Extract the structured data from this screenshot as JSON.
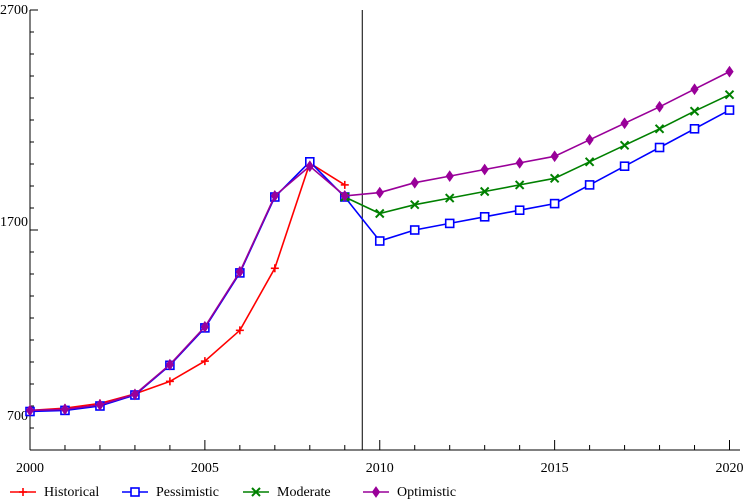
{
  "chart_data": {
    "type": "line",
    "title": "",
    "xlabel": "",
    "ylabel": "",
    "xlim": [
      2000,
      2020.3
    ],
    "ylim": [
      700,
      2700
    ],
    "x_ticks": [
      "2000",
      "2005",
      "2010",
      "2015",
      "2020"
    ],
    "y_ticks": [
      "700",
      "1700",
      "2700"
    ],
    "vertical_marker_x": 2009.5,
    "grid": false,
    "legend": {
      "placement": "bottom"
    },
    "series": [
      {
        "name": "Historical",
        "color": "#ff0000",
        "marker": "plus",
        "points": [
          [
            2000,
            880
          ],
          [
            2001,
            890
          ],
          [
            2002,
            912
          ],
          [
            2003,
            955
          ],
          [
            2004,
            1012
          ],
          [
            2005,
            1104
          ],
          [
            2006,
            1244
          ],
          [
            2007,
            1526
          ],
          [
            2008,
            2004
          ],
          [
            2009,
            1905
          ]
        ]
      },
      {
        "name": "Pessimistic",
        "color": "#0000ff",
        "marker": "square",
        "points": [
          [
            2000,
            875
          ],
          [
            2001,
            880
          ],
          [
            2002,
            900
          ],
          [
            2003,
            950
          ],
          [
            2004,
            1085
          ],
          [
            2005,
            1255
          ],
          [
            2006,
            1505
          ],
          [
            2007,
            1850
          ],
          [
            2008,
            2010
          ],
          [
            2009,
            1850
          ],
          [
            2010,
            1650
          ],
          [
            2011,
            1700
          ],
          [
            2012,
            1730
          ],
          [
            2013,
            1760
          ],
          [
            2014,
            1790
          ],
          [
            2015,
            1820
          ],
          [
            2016,
            1905
          ],
          [
            2017,
            1990
          ],
          [
            2018,
            2075
          ],
          [
            2019,
            2160
          ],
          [
            2020,
            2245
          ]
        ]
      },
      {
        "name": "Moderate",
        "color": "#008000",
        "marker": "x",
        "points": [
          [
            2009,
            1850
          ],
          [
            2010,
            1775
          ],
          [
            2011,
            1815
          ],
          [
            2012,
            1845
          ],
          [
            2013,
            1875
          ],
          [
            2014,
            1905
          ],
          [
            2015,
            1935
          ],
          [
            2016,
            2010
          ],
          [
            2017,
            2085
          ],
          [
            2018,
            2160
          ],
          [
            2019,
            2240
          ],
          [
            2020,
            2315
          ]
        ]
      },
      {
        "name": "Optimistic",
        "color": "#990099",
        "marker": "diamond",
        "points": [
          [
            2000,
            880
          ],
          [
            2001,
            885
          ],
          [
            2002,
            905
          ],
          [
            2003,
            953
          ],
          [
            2004,
            1088
          ],
          [
            2005,
            1260
          ],
          [
            2006,
            1510
          ],
          [
            2007,
            1855
          ],
          [
            2008,
            1990
          ],
          [
            2009,
            1855
          ],
          [
            2010,
            1870
          ],
          [
            2011,
            1915
          ],
          [
            2012,
            1945
          ],
          [
            2013,
            1975
          ],
          [
            2014,
            2005
          ],
          [
            2015,
            2035
          ],
          [
            2016,
            2110
          ],
          [
            2017,
            2185
          ],
          [
            2018,
            2260
          ],
          [
            2019,
            2340
          ],
          [
            2020,
            2420
          ]
        ]
      }
    ]
  }
}
